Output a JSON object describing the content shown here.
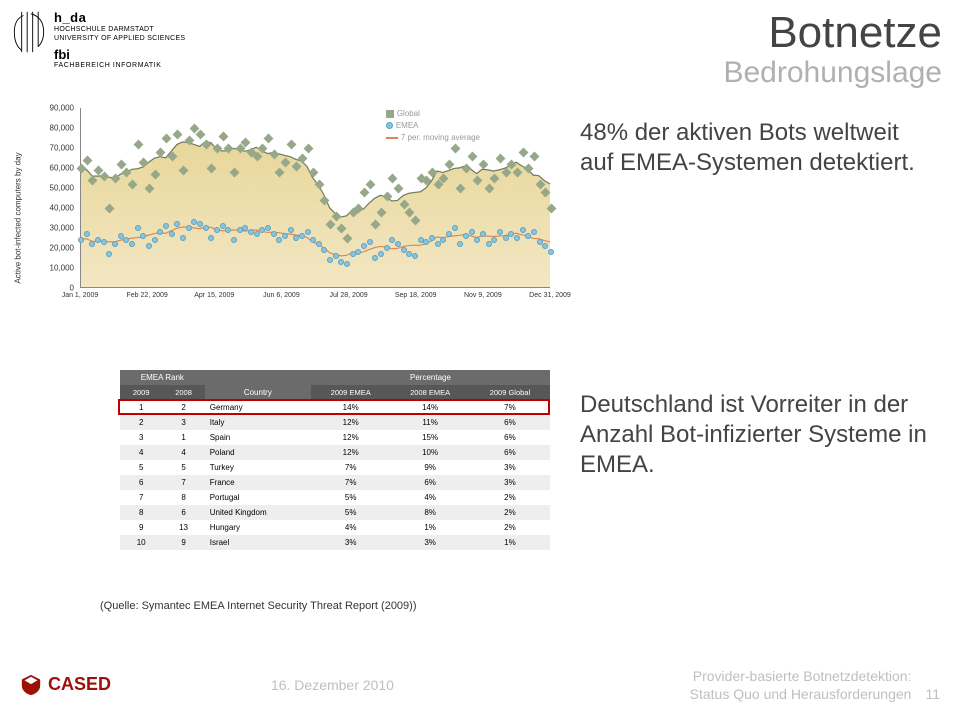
{
  "header": {
    "institution_short": "h_da",
    "institution_line1": "HOCHSCHULE DARMSTADT",
    "institution_line2": "UNIVERSITY OF APPLIED SCIENCES",
    "dept_short": "fbi",
    "dept_long": "FACHBEREICH INFORMATIK"
  },
  "title": {
    "main": "Botnetze",
    "sub": "Bedrohungslage"
  },
  "chart": {
    "type": "scatter+line",
    "ylabel": "Active bot-infected computers by day",
    "ylim": [
      0,
      90000
    ],
    "ytick_step": 10000,
    "yticks": [
      "0",
      "10,000",
      "20,000",
      "30,000",
      "40,000",
      "50,000",
      "60,000",
      "70,000",
      "80,000",
      "90,000"
    ],
    "xticks": [
      "Jan 1, 2009",
      "Feb 22, 2009",
      "Apr 15, 2009",
      "Jun 6, 2009",
      "Jul 28, 2009",
      "Sep 18, 2009",
      "Nov 9, 2009",
      "Dec 31, 2009"
    ],
    "legend": {
      "global": "Global",
      "emea": "EMEA",
      "ma": "7 per. moving average"
    },
    "colors": {
      "global_marker": "#97a88a",
      "emea_marker": "#8bc5dd",
      "emea_marker_border": "#5aa2c2",
      "global_line": "#6b7b5c",
      "emea_line": "#d88b56",
      "fill_top": "#e8d79a",
      "fill_bot": "#f3e7c4",
      "background": "#ffffff"
    },
    "series": {
      "global": [
        60,
        64,
        54,
        59,
        56,
        40,
        55,
        62,
        58,
        52,
        72,
        63,
        50,
        57,
        68,
        75,
        66,
        77,
        59,
        74,
        80,
        77,
        72,
        60,
        70,
        76,
        70,
        58,
        70,
        73,
        68,
        66,
        70,
        75,
        67,
        58,
        63,
        72,
        61,
        65,
        70,
        58,
        52,
        44,
        32,
        36,
        30,
        25,
        38,
        40,
        48,
        52,
        32,
        38,
        46,
        55,
        50,
        42,
        38,
        34,
        55,
        54,
        58,
        52,
        55,
        62,
        70,
        50,
        60,
        66,
        54,
        62,
        50,
        55,
        65,
        58,
        62,
        58,
        68,
        60,
        66,
        52,
        48,
        40
      ],
      "emea": [
        24,
        27,
        22,
        24,
        23,
        17,
        22,
        26,
        24,
        22,
        30,
        26,
        21,
        24,
        28,
        31,
        27,
        32,
        25,
        30,
        33,
        32,
        30,
        25,
        29,
        31,
        29,
        24,
        29,
        30,
        28,
        27,
        29,
        30,
        27,
        24,
        26,
        29,
        25,
        26,
        28,
        24,
        22,
        19,
        14,
        16,
        13,
        12,
        17,
        18,
        21,
        23,
        15,
        17,
        20,
        24,
        22,
        19,
        17,
        16,
        24,
        23,
        25,
        22,
        24,
        27,
        30,
        22,
        26,
        28,
        24,
        27,
        22,
        24,
        28,
        25,
        27,
        25,
        29,
        26,
        28,
        23,
        21,
        18
      ]
    }
  },
  "callout1": "48% der aktiven Bots weltweit auf EMEA-Systemen detektiert.",
  "callout2": "Deutschland ist Vorreiter in der Anzahl Bot-infizierter Systeme in EMEA.",
  "table": {
    "header_group1": "EMEA Rank",
    "header_group2": "Percentage",
    "col_2009": "2009",
    "col_2008": "2008",
    "col_country": "Country",
    "col_2009e": "2009 EMEA",
    "col_2008e": "2008 EMEA",
    "col_2009g": "2009 Global",
    "highlight_row_index": 0,
    "highlight_color": "#c00000",
    "header_bg": "#6b6b6b",
    "subheader_bg": "#575757",
    "row_alt_bg": "#eeeeee",
    "rows": [
      {
        "r09": "1",
        "r08": "2",
        "country": "Germany",
        "p09e": "14%",
        "p08e": "14%",
        "p09g": "7%"
      },
      {
        "r09": "2",
        "r08": "3",
        "country": "Italy",
        "p09e": "12%",
        "p08e": "11%",
        "p09g": "6%"
      },
      {
        "r09": "3",
        "r08": "1",
        "country": "Spain",
        "p09e": "12%",
        "p08e": "15%",
        "p09g": "6%"
      },
      {
        "r09": "4",
        "r08": "4",
        "country": "Poland",
        "p09e": "12%",
        "p08e": "10%",
        "p09g": "6%"
      },
      {
        "r09": "5",
        "r08": "5",
        "country": "Turkey",
        "p09e": "7%",
        "p08e": "9%",
        "p09g": "3%"
      },
      {
        "r09": "6",
        "r08": "7",
        "country": "France",
        "p09e": "7%",
        "p08e": "6%",
        "p09g": "3%"
      },
      {
        "r09": "7",
        "r08": "8",
        "country": "Portugal",
        "p09e": "5%",
        "p08e": "4%",
        "p09g": "2%"
      },
      {
        "r09": "8",
        "r08": "6",
        "country": "United Kingdom",
        "p09e": "5%",
        "p08e": "8%",
        "p09g": "2%"
      },
      {
        "r09": "9",
        "r08": "13",
        "country": "Hungary",
        "p09e": "4%",
        "p08e": "1%",
        "p09g": "2%"
      },
      {
        "r09": "10",
        "r08": "9",
        "country": "Israel",
        "p09e": "3%",
        "p08e": "3%",
        "p09g": "1%"
      }
    ]
  },
  "source": "(Quelle: Symantec EMEA Internet Security Threat Report (2009))",
  "footer": {
    "cased": "CASED",
    "date": "16. Dezember 2010",
    "proj_line1": "Provider-basierte Botnetzdetektion:",
    "proj_line2": "Status Quo und Herausforderungen",
    "page": "11",
    "cased_color": "#9c1006"
  }
}
